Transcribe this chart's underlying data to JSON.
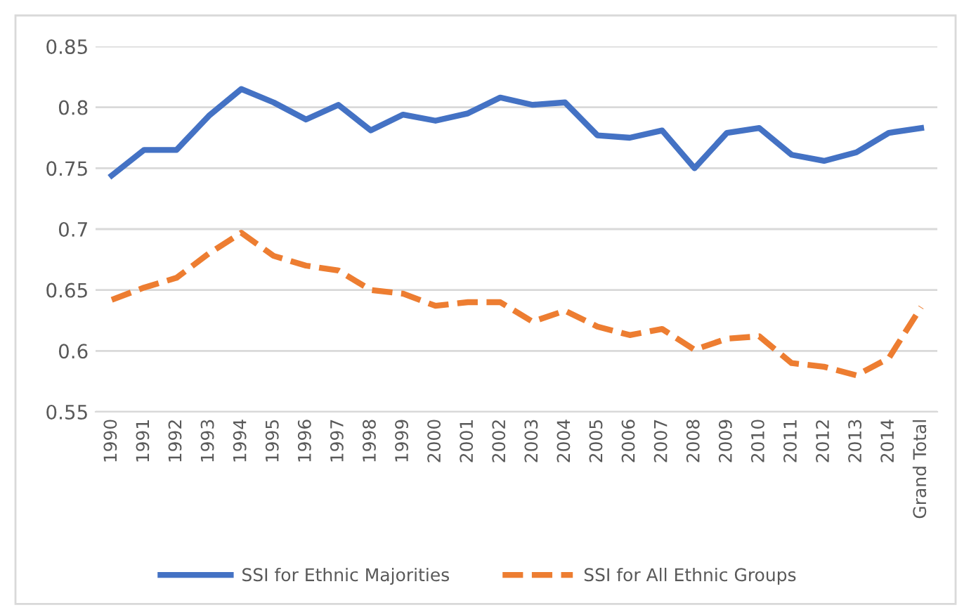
{
  "chart_data": {
    "type": "line",
    "categories": [
      "1990",
      "1991",
      "1992",
      "1993",
      "1994",
      "1995",
      "1996",
      "1997",
      "1998",
      "1999",
      "2000",
      "2001",
      "2002",
      "2003",
      "2004",
      "2005",
      "2006",
      "2007",
      "2008",
      "2009",
      "2010",
      "2011",
      "2012",
      "2013",
      "2014",
      "Grand Total"
    ],
    "series": [
      {
        "name": "SSI for Ethnic Majorities",
        "color": "#4472c4",
        "line_style": "solid",
        "values": [
          0.744,
          0.765,
          0.765,
          0.793,
          0.815,
          0.804,
          0.79,
          0.802,
          0.781,
          0.794,
          0.789,
          0.795,
          0.808,
          0.802,
          0.804,
          0.777,
          0.775,
          0.781,
          0.75,
          0.779,
          0.783,
          0.761,
          0.756,
          0.763,
          0.779,
          0.783
        ]
      },
      {
        "name": "SSI for All Ethnic Groups",
        "color": "#ed7d31",
        "line_style": "dashed",
        "values": [
          0.642,
          0.652,
          0.66,
          0.68,
          0.697,
          0.678,
          0.67,
          0.666,
          0.65,
          0.647,
          0.637,
          0.64,
          0.64,
          0.624,
          0.633,
          0.62,
          0.613,
          0.618,
          0.601,
          0.61,
          0.612,
          0.59,
          0.587,
          0.58,
          0.594,
          0.636
        ]
      }
    ],
    "ylim": [
      0.55,
      0.85
    ],
    "yticks": [
      0.55,
      0.6,
      0.65,
      0.7,
      0.75,
      0.8,
      0.85
    ],
    "grid": "y",
    "legend": "bottom"
  }
}
